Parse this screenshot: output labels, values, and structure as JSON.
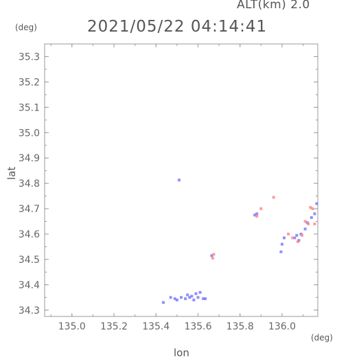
{
  "header": {
    "alt_label": "ALT(km) 2.0",
    "timestamp": "2021/05/22 04:14:41"
  },
  "chart_data": {
    "type": "scatter",
    "xlabel": "lon",
    "ylabel": "lat",
    "x_unit": "(deg)",
    "y_unit": "(deg)",
    "xlim": [
      134.87,
      136.17
    ],
    "ylim": [
      34.275,
      35.35
    ],
    "xticks": [
      "135.0",
      "135.2",
      "135.4",
      "135.6",
      "135.8",
      "136.0"
    ],
    "yticks": [
      "34.3",
      "34.4",
      "34.5",
      "34.6",
      "34.7",
      "34.8",
      "34.9",
      "35.0",
      "35.1",
      "35.2",
      "35.3"
    ],
    "grid": false,
    "series": [
      {
        "color": "#6b6bff",
        "points": [
          [
            135.51,
            34.813
          ],
          [
            135.435,
            34.33
          ],
          [
            135.47,
            34.35
          ],
          [
            135.49,
            34.345
          ],
          [
            135.5,
            34.34
          ],
          [
            135.52,
            34.35
          ],
          [
            135.54,
            34.345
          ],
          [
            135.55,
            34.36
          ],
          [
            135.56,
            34.35
          ],
          [
            135.57,
            34.355
          ],
          [
            135.58,
            34.34
          ],
          [
            135.59,
            34.365
          ],
          [
            135.6,
            34.35
          ],
          [
            135.61,
            34.37
          ],
          [
            135.625,
            34.345
          ],
          [
            135.635,
            34.345
          ],
          [
            135.665,
            34.515
          ],
          [
            135.87,
            34.675
          ],
          [
            135.88,
            34.68
          ],
          [
            135.995,
            34.53
          ],
          [
            136.0,
            34.56
          ],
          [
            136.01,
            34.585
          ],
          [
            136.06,
            34.585
          ],
          [
            136.07,
            34.595
          ],
          [
            136.08,
            34.575
          ],
          [
            136.09,
            34.6
          ],
          [
            136.11,
            34.62
          ],
          [
            136.12,
            34.645
          ],
          [
            136.14,
            34.665
          ],
          [
            136.155,
            34.68
          ],
          [
            136.165,
            34.72
          ]
        ]
      },
      {
        "color": "#ff7b7b",
        "points": [
          [
            135.67,
            34.505
          ],
          [
            135.675,
            34.52
          ],
          [
            135.88,
            34.67
          ],
          [
            135.9,
            34.7
          ],
          [
            135.96,
            34.745
          ],
          [
            136.03,
            34.6
          ],
          [
            136.05,
            34.585
          ],
          [
            136.075,
            34.57
          ],
          [
            136.095,
            34.595
          ],
          [
            136.11,
            34.65
          ],
          [
            136.125,
            34.64
          ],
          [
            136.135,
            34.705
          ],
          [
            136.145,
            34.7
          ],
          [
            136.155,
            34.64
          ]
        ]
      }
    ]
  }
}
